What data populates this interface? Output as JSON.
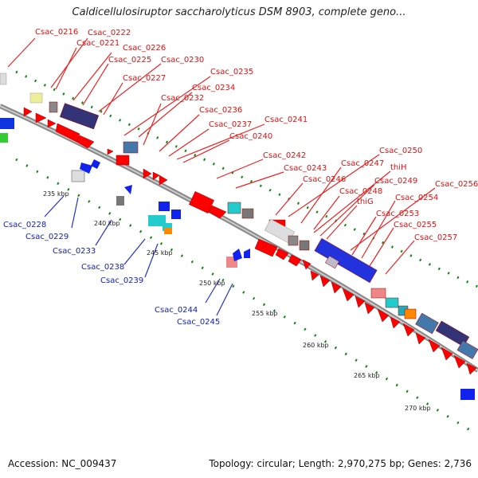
{
  "title": "Caldicellulosiruptor saccharolyticus DSM 8903, complete geno...",
  "accession": "Accession: NC_009437",
  "summary": "Topology: circular; Length: 2,970,275 bp; Genes: 2,736",
  "colors": {
    "label_forward": "#dd1111",
    "label_reverse": "#1122bb",
    "ring": "#999999",
    "tick": "#118811"
  },
  "kbp_ticks": [
    "235 kbp",
    "240 kbp",
    "245 kbp",
    "250 kbp",
    "255 kbp",
    "260 kbp",
    "265 kbp",
    "270 kbp"
  ],
  "forward_labels": [
    "Csac_0216",
    "Csac_0222",
    "Csac_0221",
    "Csac_0226",
    "Csac_0225",
    "Csac_0230",
    "Csac_0227",
    "Csac_0235",
    "Csac_0234",
    "Csac_0232",
    "Csac_0236",
    "Csac_0237",
    "Csac_0241",
    "Csac_0240",
    "Csac_0242",
    "Csac_0243",
    "Csac_0250",
    "Csac_0247",
    "Csac_0246",
    "thiH",
    "Csac_0249",
    "Csac_0248",
    "thiG",
    "Csac_0256",
    "Csac_0254",
    "Csac_0253",
    "Csac_0255",
    "Csac_0257"
  ],
  "reverse_labels": [
    "Csac_0228",
    "Csac_0229",
    "Csac_0233",
    "Csac_0238",
    "Csac_0239",
    "Csac_0244",
    "Csac_0245"
  ]
}
